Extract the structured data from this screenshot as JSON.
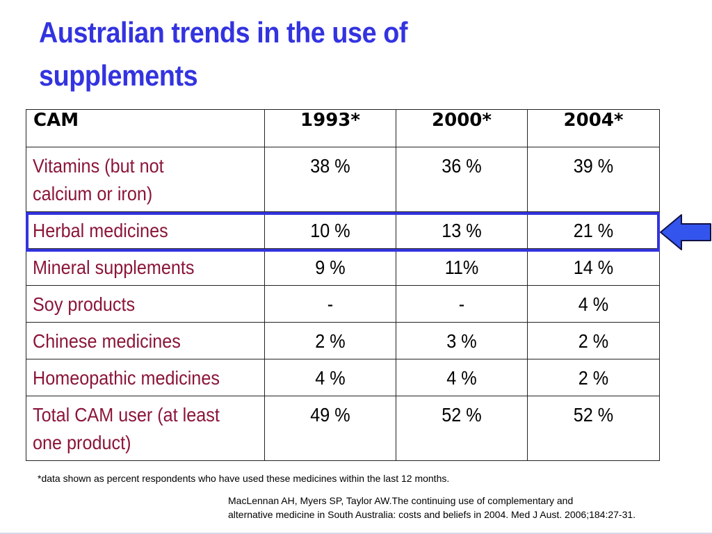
{
  "title": {
    "line1": "Australian trends in the use of",
    "line2": "supplements"
  },
  "table": {
    "headers": [
      "CAM",
      "1993*",
      "2000*",
      "2004*"
    ],
    "rows": [
      {
        "label_lines": [
          "Vitamins (but not",
          "calcium or iron)"
        ],
        "values": [
          "38 %",
          "36 %",
          "39 %"
        ]
      },
      {
        "label_lines": [
          "Herbal medicines"
        ],
        "values": [
          "10 %",
          "13 %",
          "21 %"
        ]
      },
      {
        "label_lines": [
          "Mineral supplements"
        ],
        "values": [
          "9 %",
          "11%",
          "14 %"
        ]
      },
      {
        "label_lines": [
          "Soy products"
        ],
        "values": [
          "-",
          "-",
          "4 %"
        ]
      },
      {
        "label_lines": [
          "Chinese medicines"
        ],
        "values": [
          "2 %",
          "3 %",
          "2 %"
        ]
      },
      {
        "label_lines": [
          "Homeopathic medicines"
        ],
        "values": [
          "4 %",
          "4 %",
          "2 %"
        ]
      },
      {
        "label_lines": [
          "Total CAM user (at least",
          "one product)"
        ],
        "values": [
          "49 %",
          "52 %",
          "52 %"
        ]
      }
    ]
  },
  "highlighted_row": "Herbal medicines",
  "colors": {
    "title": "#3333e0",
    "row_label": "#8b1538",
    "highlight_border": "#3333e0",
    "arrow_fill": "#3355ee"
  },
  "icons": {
    "pointer": "left-arrow-icon"
  },
  "footnote": "*data shown as percent respondents who have used these medicines within the last 12 months.",
  "citation": {
    "line1": "MacLennan AH, Myers SP, Taylor AW.The continuing use of complementary and",
    "line2": "alternative medicine in South Australia: costs and beliefs in 2004. Med J Aust. 2006;184:27-31."
  }
}
